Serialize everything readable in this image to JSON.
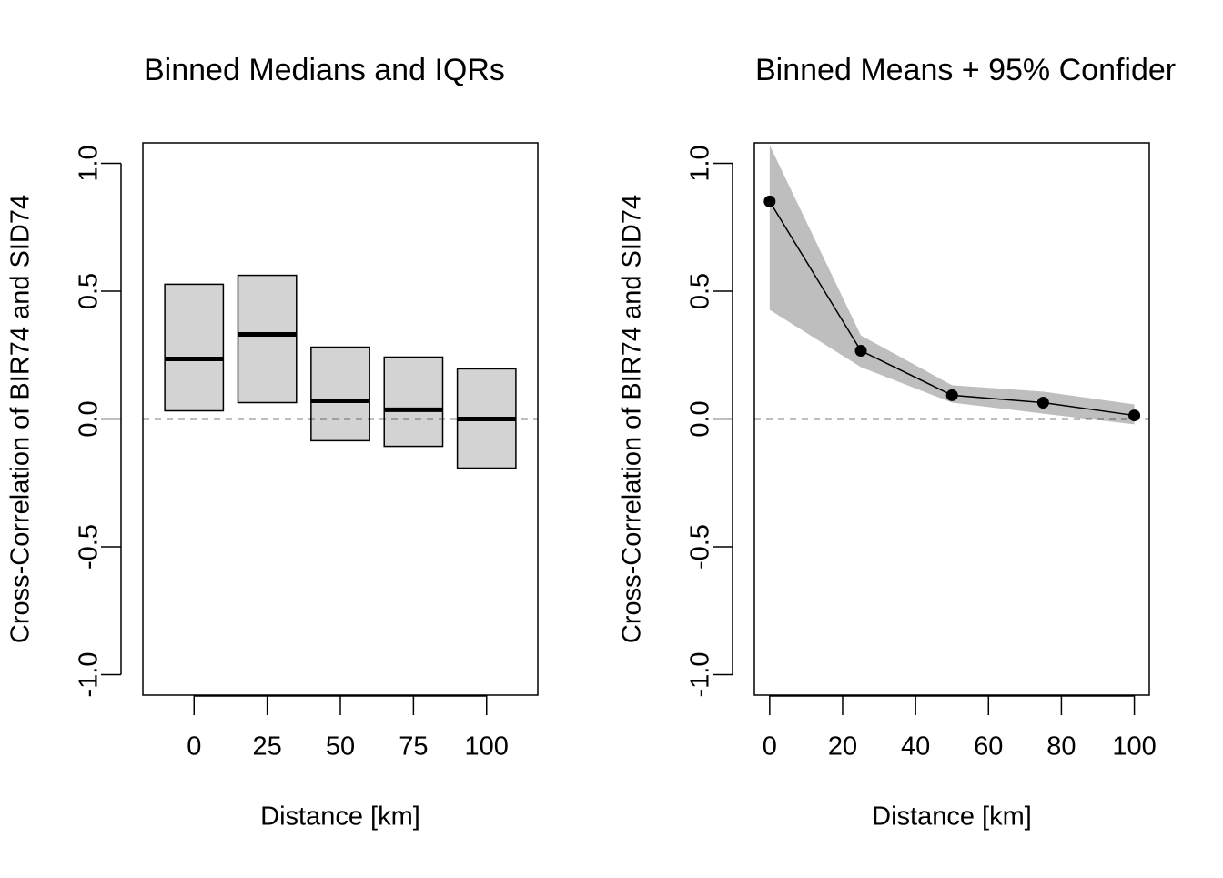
{
  "chart_data": [
    {
      "type": "box",
      "title": "Binned Medians and IQRs",
      "x_label": "Distance [km]",
      "y_label": "Cross-Correlation of BIR74 and SID74",
      "categories": [
        "0",
        "25",
        "50",
        "75",
        "100"
      ],
      "q1": [
        0.032,
        0.064,
        -0.085,
        -0.107,
        -0.192
      ],
      "median": [
        0.235,
        0.331,
        0.071,
        0.036,
        0.0
      ],
      "q3": [
        0.527,
        0.562,
        0.281,
        0.242,
        0.196
      ],
      "color": "#d3d3d3",
      "reference_line": 0,
      "ylim": [
        -1.08,
        1.08
      ],
      "yticks": [
        {
          "value": -1,
          "label": "-1.0"
        },
        {
          "value": -0.5,
          "label": "-0.5"
        },
        {
          "value": 0,
          "label": "0.0"
        },
        {
          "value": 0.5,
          "label": "0.5"
        },
        {
          "value": 1,
          "label": "1.0"
        }
      ]
    },
    {
      "type": "line",
      "title": "Binned Means + 95% Confider",
      "x_label": "Distance [km]",
      "y_label": "Cross-Correlation of BIR74 and SID74",
      "x": [
        0,
        25,
        50,
        75,
        100
      ],
      "values": [
        0.851,
        0.267,
        0.093,
        0.064,
        0.014
      ],
      "lower": [
        0.427,
        0.203,
        0.064,
        0.021,
        -0.021
      ],
      "upper": [
        1.071,
        0.327,
        0.132,
        0.107,
        0.057
      ],
      "color": "#000000",
      "band_color": "#bebebe",
      "reference_line": 0,
      "xlim": [
        -4.2,
        104.1
      ],
      "xticks": [
        0,
        20,
        40,
        60,
        80,
        100
      ],
      "ylim": [
        -1.08,
        1.08
      ],
      "yticks": [
        {
          "value": -1,
          "label": "-1.0"
        },
        {
          "value": -0.5,
          "label": "-0.5"
        },
        {
          "value": 0,
          "label": "0.0"
        },
        {
          "value": 0.5,
          "label": "0.5"
        },
        {
          "value": 1,
          "label": "1.0"
        }
      ]
    }
  ]
}
